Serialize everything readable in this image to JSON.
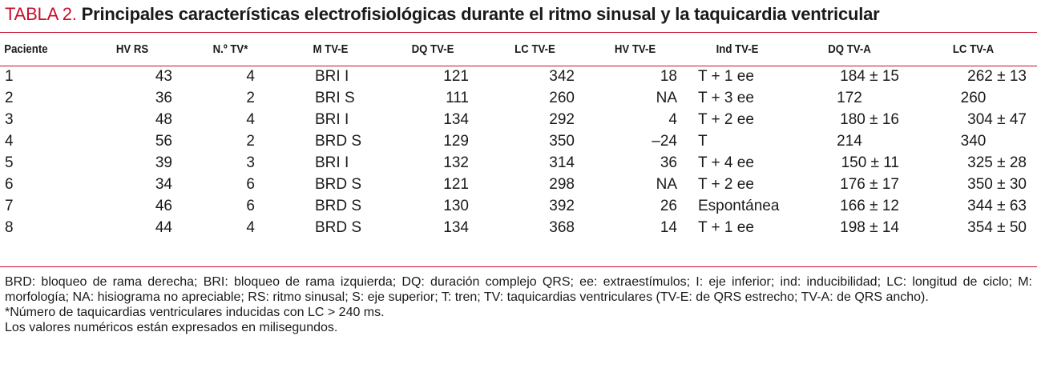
{
  "title": {
    "label": "TABLA 2.",
    "text": "Principales características electrofisiológicas durante el ritmo sinusal y la taquicardia ventricular"
  },
  "table": {
    "headers": [
      "Paciente",
      "HV RS",
      "N.º TV*",
      "M TV-E",
      "DQ TV-E",
      "LC TV-E",
      "HV TV-E",
      "Ind TV-E",
      "DQ TV-A",
      "LC TV-A"
    ],
    "rows": [
      [
        "1",
        "43",
        "4",
        "BRI I",
        "121",
        "342",
        "18",
        "T + 1 ee",
        "184 ± 15",
        "262 ± 13"
      ],
      [
        "2",
        "36",
        "2",
        "BRI S",
        "111",
        "260",
        "NA",
        "T + 3 ee",
        "172",
        "260"
      ],
      [
        "3",
        "48",
        "4",
        "BRI I",
        "134",
        "292",
        "4",
        "T + 2 ee",
        "180 ± 16",
        "304 ± 47"
      ],
      [
        "4",
        "56",
        "2",
        "BRD S",
        "129",
        "350",
        "–24",
        "T",
        "214",
        "340"
      ],
      [
        "5",
        "39",
        "3",
        "BRI I",
        "132",
        "314",
        "36",
        "T + 4 ee",
        "150 ± 11",
        "325 ± 28"
      ],
      [
        "6",
        "34",
        "6",
        "BRD S",
        "121",
        "298",
        "NA",
        "T + 2 ee",
        "176 ± 17",
        "350 ± 30"
      ],
      [
        "7",
        "46",
        "6",
        "BRD S",
        "130",
        "392",
        "26",
        "Espontánea",
        "166 ± 12",
        "344 ± 63"
      ],
      [
        "8",
        "44",
        "4",
        "BRD S",
        "134",
        "368",
        "14",
        "T + 1 ee",
        "198 ± 14",
        "354 ± 50"
      ]
    ]
  },
  "footnotes": {
    "abbreviations": "BRD: bloqueo de rama derecha; BRI: bloqueo de rama izquierda; DQ: duración complejo QRS; ee: extraestímulos; I: eje inferior; ind: inducibilidad; LC: longitud de ciclo; M: morfología; NA: hisiograma no apreciable; RS: ritmo sinusal; S: eje superior; T: tren; TV: taquicardias ventriculares (TV-E: de QRS estrecho; TV-A: de QRS ancho).",
    "asterisk": "*Número de taquicardias ventriculares inducidas con LC > 240 ms.",
    "units": "Los valores numéricos están expresados en milisegundos."
  },
  "colors": {
    "accent": "#c8102e",
    "text": "#1a1a1a",
    "background": "#ffffff"
  }
}
